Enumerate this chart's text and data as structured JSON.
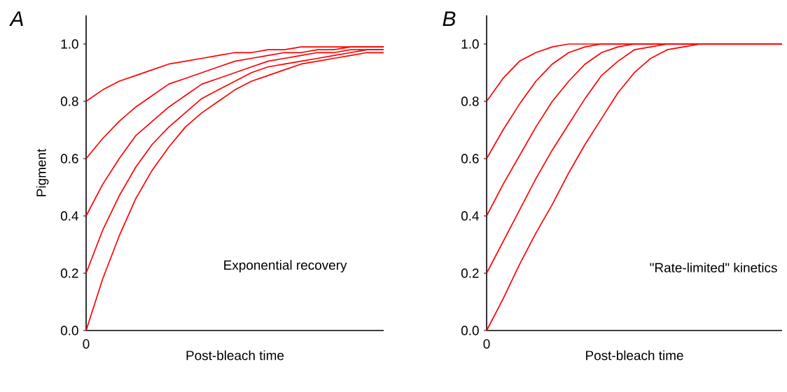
{
  "chart_data": [
    {
      "type": "line",
      "title": "A",
      "xlabel": "Post-bleach time",
      "ylabel": "Pigment",
      "annotations": [
        "0",
        "Exponential recovery"
      ],
      "categories": [
        null,
        null,
        null,
        null,
        null,
        null,
        null,
        null,
        null,
        null,
        null,
        null,
        null,
        null,
        null,
        null,
        null,
        null,
        null
      ],
      "ylim": [
        0,
        1.1
      ],
      "yticks": [
        {
          "value": 0,
          "label": "0.0"
        },
        {
          "value": 0.2,
          "label": "0.2"
        },
        {
          "value": 0.4,
          "label": "0.4"
        },
        {
          "value": 0.6,
          "label": "0.6"
        },
        {
          "value": 0.8,
          "label": "0.8"
        },
        {
          "value": 1.0,
          "label": "1.0"
        }
      ],
      "series": [
        {
          "color": "#ff0000",
          "values": [
            0,
            0.18,
            0.33,
            0.46,
            0.56,
            0.64,
            0.71,
            0.76,
            0.8,
            0.84,
            0.87,
            0.89,
            0.91,
            0.93,
            0.94,
            0.95,
            0.96,
            0.97,
            0.97
          ]
        },
        {
          "color": "#ff0000",
          "values": [
            0.2,
            0.35,
            0.47,
            0.57,
            0.65,
            0.71,
            0.76,
            0.81,
            0.84,
            0.87,
            0.9,
            0.92,
            0.93,
            0.94,
            0.95,
            0.96,
            0.97,
            0.98,
            0.98
          ]
        },
        {
          "color": "#ff0000",
          "values": [
            0.4,
            0.51,
            0.6,
            0.68,
            0.73,
            0.78,
            0.82,
            0.86,
            0.88,
            0.9,
            0.92,
            0.94,
            0.95,
            0.96,
            0.97,
            0.97,
            0.98,
            0.98,
            0.98
          ]
        },
        {
          "color": "#ff0000",
          "values": [
            0.6,
            0.67,
            0.73,
            0.78,
            0.82,
            0.86,
            0.88,
            0.9,
            0.92,
            0.94,
            0.95,
            0.96,
            0.97,
            0.97,
            0.98,
            0.98,
            0.99,
            0.99,
            0.99
          ]
        },
        {
          "color": "#ff0000",
          "values": [
            0.8,
            0.84,
            0.87,
            0.89,
            0.91,
            0.93,
            0.94,
            0.95,
            0.96,
            0.97,
            0.97,
            0.98,
            0.98,
            0.99,
            0.99,
            0.99,
            0.99,
            0.99,
            0.99
          ]
        }
      ]
    },
    {
      "type": "line",
      "title": "B",
      "xlabel": "Post-bleach time",
      "annotations": [
        "0",
        "\"Rate-limited\" kinetics"
      ],
      "categories": [
        null,
        null,
        null,
        null,
        null,
        null,
        null,
        null,
        null,
        null,
        null,
        null,
        null,
        null,
        null,
        null,
        null,
        null,
        null
      ],
      "ylim": [
        0,
        1.1
      ],
      "yticks": [
        {
          "value": 0,
          "label": "0.0"
        },
        {
          "value": 0.2,
          "label": "0.2"
        },
        {
          "value": 0.4,
          "label": "0.4"
        },
        {
          "value": 0.6,
          "label": "0.6"
        },
        {
          "value": 0.8,
          "label": "0.8"
        },
        {
          "value": 1.0,
          "label": "1.0"
        }
      ],
      "series": [
        {
          "color": "#ff0000",
          "values": [
            0,
            0.11,
            0.23,
            0.34,
            0.44,
            0.55,
            0.65,
            0.74,
            0.83,
            0.9,
            0.95,
            0.98,
            0.99,
            1.0,
            1.0,
            1.0,
            1.0,
            1.0,
            1.0
          ]
        },
        {
          "color": "#ff0000",
          "values": [
            0.2,
            0.31,
            0.42,
            0.53,
            0.63,
            0.72,
            0.81,
            0.89,
            0.94,
            0.98,
            0.99,
            1.0,
            1.0,
            1.0,
            1.0,
            1.0,
            1.0,
            1.0,
            1.0
          ]
        },
        {
          "color": "#ff0000",
          "values": [
            0.4,
            0.51,
            0.61,
            0.71,
            0.8,
            0.87,
            0.93,
            0.97,
            0.99,
            1.0,
            1.0,
            1.0,
            1.0,
            1.0,
            1.0,
            1.0,
            1.0,
            1.0,
            1.0
          ]
        },
        {
          "color": "#ff0000",
          "values": [
            0.6,
            0.7,
            0.79,
            0.87,
            0.93,
            0.97,
            0.99,
            1.0,
            1.0,
            1.0,
            1.0,
            1.0,
            1.0,
            1.0,
            1.0,
            1.0,
            1.0,
            1.0,
            1.0
          ]
        },
        {
          "color": "#ff0000",
          "values": [
            0.8,
            0.88,
            0.94,
            0.97,
            0.99,
            1.0,
            1.0,
            1.0,
            1.0,
            1.0,
            1.0,
            1.0,
            1.0,
            1.0,
            1.0,
            1.0,
            1.0,
            1.0,
            1.0
          ]
        }
      ]
    }
  ]
}
